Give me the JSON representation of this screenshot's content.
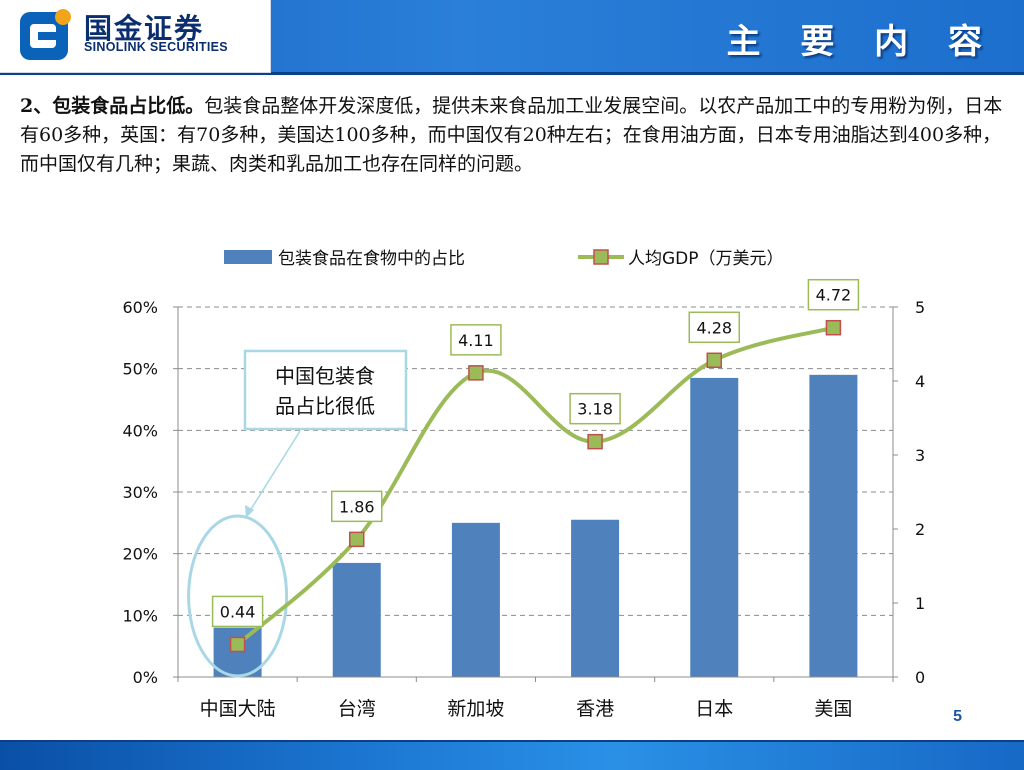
{
  "header": {
    "title": "主 要 内 容",
    "logo_cn": "国金证券",
    "logo_en": "SINOLINK SECURITIES"
  },
  "content": {
    "heading": "2、包装食品占比低。",
    "body": "包装食品整体开发深度低，提供未来食品加工业发展空间。以农产品加工中的专用粉为例，日本有60多种，英国：有70多种，美国达100多种，而中国仅有20种左右；在食用油方面，日本专用油脂达到400多种，而中国仅有几种；果蔬、肉类和乳品加工也存在同样的问题。"
  },
  "chart_data": {
    "type": "bar",
    "categories": [
      "中国大陆",
      "台湾",
      "新加坡",
      "香港",
      "日本",
      "美国"
    ],
    "series": [
      {
        "name": "包装食品在食物中的占比",
        "type": "bar",
        "axis": "left",
        "values": [
          0.08,
          0.185,
          0.25,
          0.255,
          0.485,
          0.49
        ],
        "color": "#4f81bd"
      },
      {
        "name": "人均GDP（万美元）",
        "type": "line",
        "axis": "right",
        "values": [
          0.44,
          1.86,
          4.11,
          3.18,
          4.28,
          4.72
        ],
        "data_labels": [
          "0.44",
          "1.86",
          "4.11",
          "3.18",
          "4.28",
          "4.72"
        ],
        "color": "#9bbb59",
        "marker_color": "#c0504d"
      }
    ],
    "y_left": {
      "range": [
        0,
        0.6
      ],
      "ticks": [
        "0%",
        "10%",
        "20%",
        "30%",
        "40%",
        "50%",
        "60%"
      ]
    },
    "y_right": {
      "range": [
        0,
        5
      ],
      "ticks": [
        "0",
        "1",
        "2",
        "3",
        "4",
        "5"
      ]
    },
    "grid": true,
    "legend": "top",
    "annotation": {
      "text_lines": [
        "中国包装食",
        "品占比很低"
      ],
      "target_category": "中国大陆"
    }
  },
  "footer": {
    "page": "5"
  }
}
